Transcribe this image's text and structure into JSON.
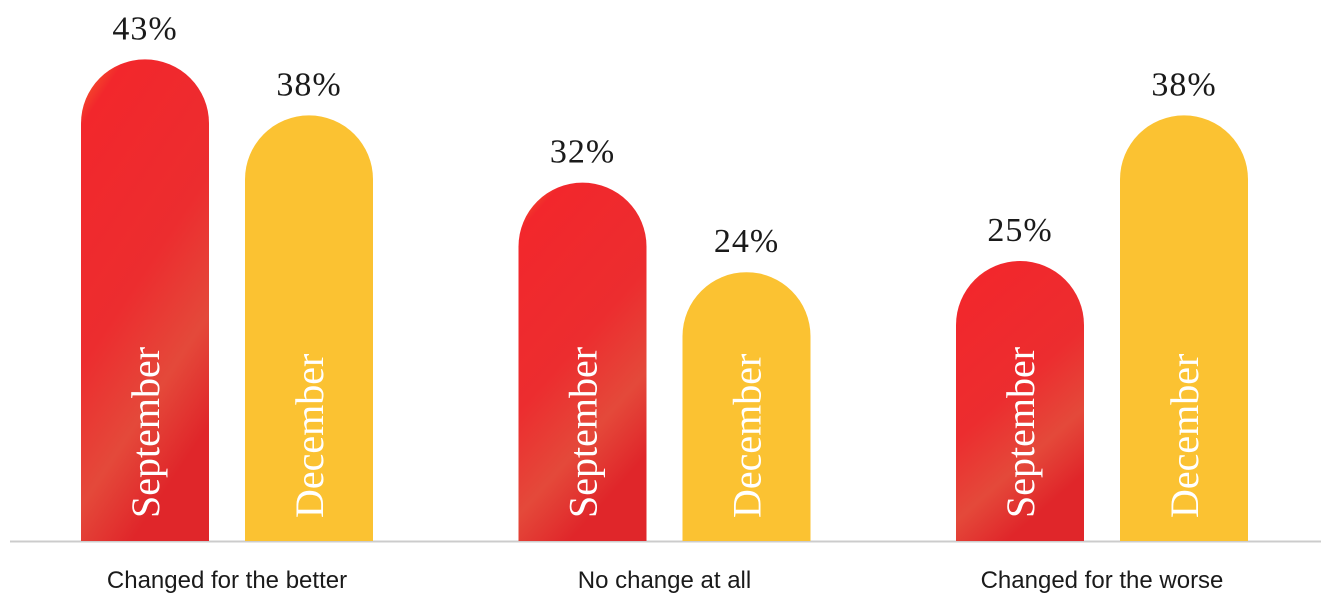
{
  "chart_data": {
    "type": "bar",
    "categories": [
      "Changed for the better",
      "No change at all",
      "Changed for the worse"
    ],
    "series": [
      {
        "name": "September",
        "color": "#ef2a2e",
        "values": [
          43,
          32,
          25
        ],
        "value_labels": [
          "43%",
          "32%",
          "25%"
        ]
      },
      {
        "name": "December",
        "color": "#fbc232",
        "values": [
          38,
          24,
          38
        ],
        "value_labels": [
          "38%",
          "24%",
          "38%"
        ]
      }
    ]
  }
}
